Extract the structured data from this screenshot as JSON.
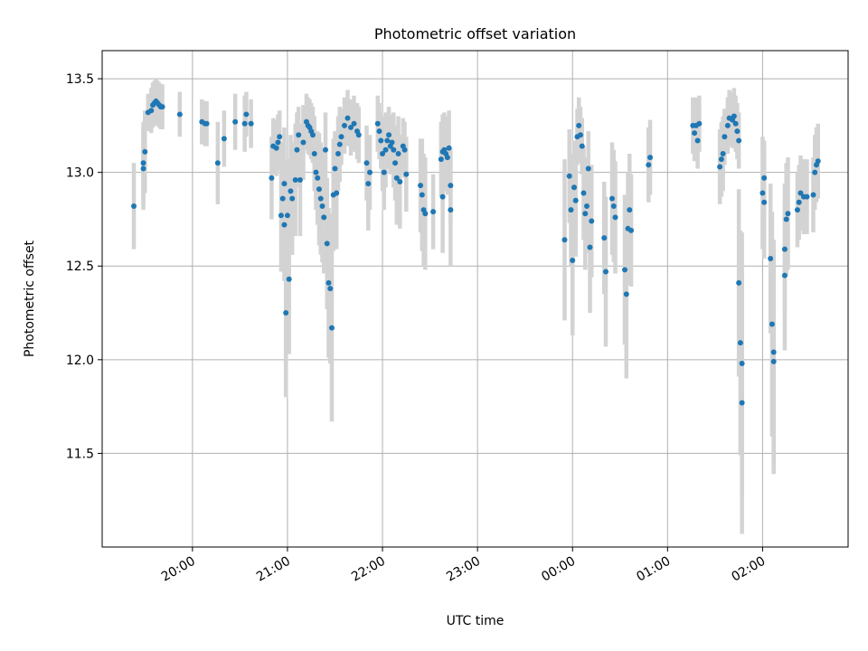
{
  "chart_data": {
    "type": "scatter",
    "title": "Photometric offset variation",
    "xlabel": "UTC time",
    "ylabel": "Photometric offset",
    "ylim": [
      11.0,
      13.65
    ],
    "xlim_hours_since_19:00": [
      0.05,
      7.9
    ],
    "x_tick_labels": [
      "20:00",
      "21:00",
      "22:00",
      "23:00",
      "00:00",
      "01:00",
      "02:00"
    ],
    "y_tick_labels": [
      "11.5",
      "12.0",
      "12.5",
      "13.0",
      "13.5"
    ],
    "y_ticks": [
      11.5,
      12.0,
      12.5,
      13.0,
      13.5
    ],
    "grid": true,
    "marker_color": "#1f77b4",
    "errorbar_color": "#d3d3d3",
    "series": [
      {
        "points": [
          {
            "x": "19:23",
            "y": 12.82,
            "err": 0.23
          },
          {
            "x": "19:29",
            "y": 13.02,
            "err": 0.22
          },
          {
            "x": "19:29",
            "y": 13.05,
            "err": 0.22
          },
          {
            "x": "19:30",
            "y": 13.11,
            "err": 0.22
          },
          {
            "x": "19:32",
            "y": 13.32,
            "err": 0.1
          },
          {
            "x": "19:34",
            "y": 13.33,
            "err": 0.12
          },
          {
            "x": "19:35",
            "y": 13.36,
            "err": 0.12
          },
          {
            "x": "19:36",
            "y": 13.37,
            "err": 0.12
          },
          {
            "x": "19:37",
            "y": 13.38,
            "err": 0.12
          },
          {
            "x": "19:38",
            "y": 13.37,
            "err": 0.12
          },
          {
            "x": "19:39",
            "y": 13.36,
            "err": 0.12
          },
          {
            "x": "19:40",
            "y": 13.35,
            "err": 0.12
          },
          {
            "x": "19:41",
            "y": 13.35,
            "err": 0.12
          },
          {
            "x": "19:52",
            "y": 13.31,
            "err": 0.12
          },
          {
            "x": "20:06",
            "y": 13.27,
            "err": 0.12
          },
          {
            "x": "20:08",
            "y": 13.26,
            "err": 0.12
          },
          {
            "x": "20:09",
            "y": 13.26,
            "err": 0.12
          },
          {
            "x": "20:16",
            "y": 13.05,
            "err": 0.22
          },
          {
            "x": "20:20",
            "y": 13.18,
            "err": 0.15
          },
          {
            "x": "20:27",
            "y": 13.27,
            "err": 0.15
          },
          {
            "x": "20:33",
            "y": 13.26,
            "err": 0.15
          },
          {
            "x": "20:34",
            "y": 13.31,
            "err": 0.12
          },
          {
            "x": "20:37",
            "y": 13.26,
            "err": 0.13
          },
          {
            "x": "20:50",
            "y": 12.97,
            "err": 0.22
          },
          {
            "x": "20:51",
            "y": 13.14,
            "err": 0.15
          },
          {
            "x": "20:53",
            "y": 13.13,
            "err": 0.15
          },
          {
            "x": "20:54",
            "y": 13.16,
            "err": 0.15
          },
          {
            "x": "20:55",
            "y": 13.19,
            "err": 0.14
          },
          {
            "x": "20:56",
            "y": 12.77,
            "err": 0.3
          },
          {
            "x": "20:57",
            "y": 12.86,
            "err": 0.3
          },
          {
            "x": "20:58",
            "y": 12.94,
            "err": 0.3
          },
          {
            "x": "20:58",
            "y": 12.72,
            "err": 0.3
          },
          {
            "x": "20:59",
            "y": 12.25,
            "err": 0.45
          },
          {
            "x": "21:00",
            "y": 12.77,
            "err": 0.3
          },
          {
            "x": "21:01",
            "y": 12.43,
            "err": 0.4
          },
          {
            "x": "21:02",
            "y": 12.9,
            "err": 0.3
          },
          {
            "x": "21:03",
            "y": 12.86,
            "err": 0.3
          },
          {
            "x": "21:05",
            "y": 12.96,
            "err": 0.3
          },
          {
            "x": "21:06",
            "y": 13.12,
            "err": 0.2
          },
          {
            "x": "21:07",
            "y": 13.2,
            "err": 0.15
          },
          {
            "x": "21:08",
            "y": 12.96,
            "err": 0.3
          },
          {
            "x": "21:10",
            "y": 13.16,
            "err": 0.2
          },
          {
            "x": "21:12",
            "y": 13.27,
            "err": 0.15
          },
          {
            "x": "21:13",
            "y": 13.25,
            "err": 0.15
          },
          {
            "x": "21:14",
            "y": 13.24,
            "err": 0.15
          },
          {
            "x": "21:15",
            "y": 13.22,
            "err": 0.15
          },
          {
            "x": "21:16",
            "y": 13.2,
            "err": 0.15
          },
          {
            "x": "21:17",
            "y": 13.1,
            "err": 0.2
          },
          {
            "x": "21:18",
            "y": 13.0,
            "err": 0.2
          },
          {
            "x": "21:19",
            "y": 12.97,
            "err": 0.25
          },
          {
            "x": "21:20",
            "y": 12.91,
            "err": 0.3
          },
          {
            "x": "21:21",
            "y": 12.86,
            "err": 0.3
          },
          {
            "x": "21:22",
            "y": 12.82,
            "err": 0.3
          },
          {
            "x": "21:23",
            "y": 12.76,
            "err": 0.3
          },
          {
            "x": "21:24",
            "y": 13.12,
            "err": 0.2
          },
          {
            "x": "21:25",
            "y": 12.62,
            "err": 0.35
          },
          {
            "x": "21:26",
            "y": 12.41,
            "err": 0.4
          },
          {
            "x": "21:27",
            "y": 12.38,
            "err": 0.4
          },
          {
            "x": "21:28",
            "y": 12.17,
            "err": 0.5
          },
          {
            "x": "21:29",
            "y": 12.88,
            "err": 0.3
          },
          {
            "x": "21:30",
            "y": 13.02,
            "err": 0.2
          },
          {
            "x": "21:31",
            "y": 12.89,
            "err": 0.3
          },
          {
            "x": "21:32",
            "y": 13.1,
            "err": 0.2
          },
          {
            "x": "21:33",
            "y": 13.15,
            "err": 0.2
          },
          {
            "x": "21:34",
            "y": 13.19,
            "err": 0.15
          },
          {
            "x": "21:36",
            "y": 13.25,
            "err": 0.15
          },
          {
            "x": "21:38",
            "y": 13.29,
            "err": 0.15
          },
          {
            "x": "21:40",
            "y": 13.24,
            "err": 0.15
          },
          {
            "x": "21:42",
            "y": 13.26,
            "err": 0.15
          },
          {
            "x": "21:44",
            "y": 13.22,
            "err": 0.15
          },
          {
            "x": "21:45",
            "y": 13.2,
            "err": 0.15
          },
          {
            "x": "21:50",
            "y": 13.05,
            "err": 0.2
          },
          {
            "x": "21:51",
            "y": 12.94,
            "err": 0.25
          },
          {
            "x": "21:52",
            "y": 13.0,
            "err": 0.2
          },
          {
            "x": "21:57",
            "y": 13.26,
            "err": 0.15
          },
          {
            "x": "21:58",
            "y": 13.22,
            "err": 0.15
          },
          {
            "x": "21:59",
            "y": 13.17,
            "err": 0.15
          },
          {
            "x": "22:00",
            "y": 13.1,
            "err": 0.2
          },
          {
            "x": "22:01",
            "y": 13.0,
            "err": 0.2
          },
          {
            "x": "22:02",
            "y": 13.12,
            "err": 0.2
          },
          {
            "x": "22:03",
            "y": 13.17,
            "err": 0.15
          },
          {
            "x": "22:04",
            "y": 13.2,
            "err": 0.15
          },
          {
            "x": "22:05",
            "y": 13.14,
            "err": 0.15
          },
          {
            "x": "22:06",
            "y": 13.16,
            "err": 0.15
          },
          {
            "x": "22:07",
            "y": 13.12,
            "err": 0.2
          },
          {
            "x": "22:08",
            "y": 13.05,
            "err": 0.2
          },
          {
            "x": "22:09",
            "y": 12.97,
            "err": 0.25
          },
          {
            "x": "22:10",
            "y": 13.1,
            "err": 0.2
          },
          {
            "x": "22:11",
            "y": 12.95,
            "err": 0.25
          },
          {
            "x": "22:13",
            "y": 13.14,
            "err": 0.15
          },
          {
            "x": "22:14",
            "y": 13.12,
            "err": 0.15
          },
          {
            "x": "22:15",
            "y": 12.99,
            "err": 0.2
          },
          {
            "x": "22:24",
            "y": 12.93,
            "err": 0.25
          },
          {
            "x": "22:25",
            "y": 12.88,
            "err": 0.3
          },
          {
            "x": "22:26",
            "y": 12.8,
            "err": 0.3
          },
          {
            "x": "22:27",
            "y": 12.78,
            "err": 0.3
          },
          {
            "x": "22:32",
            "y": 12.79,
            "err": 0.2
          },
          {
            "x": "22:37",
            "y": 13.07,
            "err": 0.2
          },
          {
            "x": "22:38",
            "y": 13.11,
            "err": 0.2
          },
          {
            "x": "22:38",
            "y": 12.87,
            "err": 0.3
          },
          {
            "x": "22:39",
            "y": 13.12,
            "err": 0.2
          },
          {
            "x": "22:40",
            "y": 13.1,
            "err": 0.2
          },
          {
            "x": "22:41",
            "y": 13.08,
            "err": 0.2
          },
          {
            "x": "22:42",
            "y": 13.13,
            "err": 0.2
          },
          {
            "x": "22:43",
            "y": 12.93,
            "err": 0.2
          },
          {
            "x": "22:43",
            "y": 12.8,
            "err": 0.3
          },
          {
            "x": "23:55",
            "y": 12.64,
            "err": 0.43
          },
          {
            "x": "23:58",
            "y": 12.98,
            "err": 0.25
          },
          {
            "x": "23:59",
            "y": 12.8,
            "err": 0.3
          },
          {
            "x": "00:00",
            "y": 12.53,
            "err": 0.4
          },
          {
            "x": "00:01",
            "y": 12.92,
            "err": 0.25
          },
          {
            "x": "00:02",
            "y": 12.85,
            "err": 0.3
          },
          {
            "x": "00:03",
            "y": 13.19,
            "err": 0.15
          },
          {
            "x": "00:04",
            "y": 13.25,
            "err": 0.15
          },
          {
            "x": "00:05",
            "y": 13.2,
            "err": 0.15
          },
          {
            "x": "00:06",
            "y": 13.14,
            "err": 0.15
          },
          {
            "x": "00:07",
            "y": 12.89,
            "err": 0.25
          },
          {
            "x": "00:08",
            "y": 12.78,
            "err": 0.3
          },
          {
            "x": "00:09",
            "y": 12.82,
            "err": 0.25
          },
          {
            "x": "00:10",
            "y": 13.02,
            "err": 0.2
          },
          {
            "x": "00:11",
            "y": 12.6,
            "err": 0.35
          },
          {
            "x": "00:12",
            "y": 12.74,
            "err": 0.3
          },
          {
            "x": "00:20",
            "y": 12.65,
            "err": 0.3
          },
          {
            "x": "00:21",
            "y": 12.47,
            "err": 0.4
          },
          {
            "x": "00:25",
            "y": 12.86,
            "err": 0.3
          },
          {
            "x": "00:26",
            "y": 12.82,
            "err": 0.3
          },
          {
            "x": "00:27",
            "y": 12.76,
            "err": 0.3
          },
          {
            "x": "00:33",
            "y": 12.48,
            "err": 0.4
          },
          {
            "x": "00:34",
            "y": 12.35,
            "err": 0.45
          },
          {
            "x": "00:35",
            "y": 12.7,
            "err": 0.3
          },
          {
            "x": "00:36",
            "y": 12.8,
            "err": 0.3
          },
          {
            "x": "00:37",
            "y": 12.69,
            "err": 0.3
          },
          {
            "x": "00:48",
            "y": 13.04,
            "err": 0.2
          },
          {
            "x": "00:49",
            "y": 13.08,
            "err": 0.2
          },
          {
            "x": "01:16",
            "y": 13.25,
            "err": 0.15
          },
          {
            "x": "01:17",
            "y": 13.21,
            "err": 0.15
          },
          {
            "x": "01:18",
            "y": 13.25,
            "err": 0.15
          },
          {
            "x": "01:19",
            "y": 13.17,
            "err": 0.15
          },
          {
            "x": "01:20",
            "y": 13.26,
            "err": 0.15
          },
          {
            "x": "01:33",
            "y": 13.03,
            "err": 0.2
          },
          {
            "x": "01:34",
            "y": 13.07,
            "err": 0.2
          },
          {
            "x": "01:35",
            "y": 13.1,
            "err": 0.2
          },
          {
            "x": "01:36",
            "y": 13.19,
            "err": 0.15
          },
          {
            "x": "01:38",
            "y": 13.25,
            "err": 0.15
          },
          {
            "x": "01:39",
            "y": 13.29,
            "err": 0.15
          },
          {
            "x": "01:41",
            "y": 13.28,
            "err": 0.15
          },
          {
            "x": "01:42",
            "y": 13.3,
            "err": 0.15
          },
          {
            "x": "01:43",
            "y": 13.26,
            "err": 0.15
          },
          {
            "x": "01:44",
            "y": 13.22,
            "err": 0.15
          },
          {
            "x": "01:45",
            "y": 13.17,
            "err": 0.15
          },
          {
            "x": "01:45",
            "y": 12.41,
            "err": 0.5
          },
          {
            "x": "01:46",
            "y": 12.09,
            "err": 0.6
          },
          {
            "x": "01:47",
            "y": 11.98,
            "err": 0.7
          },
          {
            "x": "01:47",
            "y": 11.77,
            "err": 0.7
          },
          {
            "x": "02:00",
            "y": 12.89,
            "err": 0.3
          },
          {
            "x": "02:01",
            "y": 12.84,
            "err": 0.3
          },
          {
            "x": "02:01",
            "y": 12.97,
            "err": 0.2
          },
          {
            "x": "02:05",
            "y": 12.54,
            "err": 0.4
          },
          {
            "x": "02:06",
            "y": 12.19,
            "err": 0.6
          },
          {
            "x": "02:07",
            "y": 12.04,
            "err": 0.6
          },
          {
            "x": "02:07",
            "y": 11.99,
            "err": 0.6
          },
          {
            "x": "02:14",
            "y": 12.45,
            "err": 0.4
          },
          {
            "x": "02:14",
            "y": 12.59,
            "err": 0.35
          },
          {
            "x": "02:15",
            "y": 12.75,
            "err": 0.3
          },
          {
            "x": "02:16",
            "y": 12.78,
            "err": 0.3
          },
          {
            "x": "02:22",
            "y": 12.8,
            "err": 0.2
          },
          {
            "x": "02:23",
            "y": 12.84,
            "err": 0.2
          },
          {
            "x": "02:24",
            "y": 12.89,
            "err": 0.2
          },
          {
            "x": "02:26",
            "y": 12.87,
            "err": 0.2
          },
          {
            "x": "02:28",
            "y": 12.87,
            "err": 0.2
          },
          {
            "x": "02:32",
            "y": 12.88,
            "err": 0.2
          },
          {
            "x": "02:33",
            "y": 13.0,
            "err": 0.2
          },
          {
            "x": "02:34",
            "y": 13.04,
            "err": 0.2
          },
          {
            "x": "02:35",
            "y": 13.06,
            "err": 0.2
          }
        ]
      }
    ]
  }
}
